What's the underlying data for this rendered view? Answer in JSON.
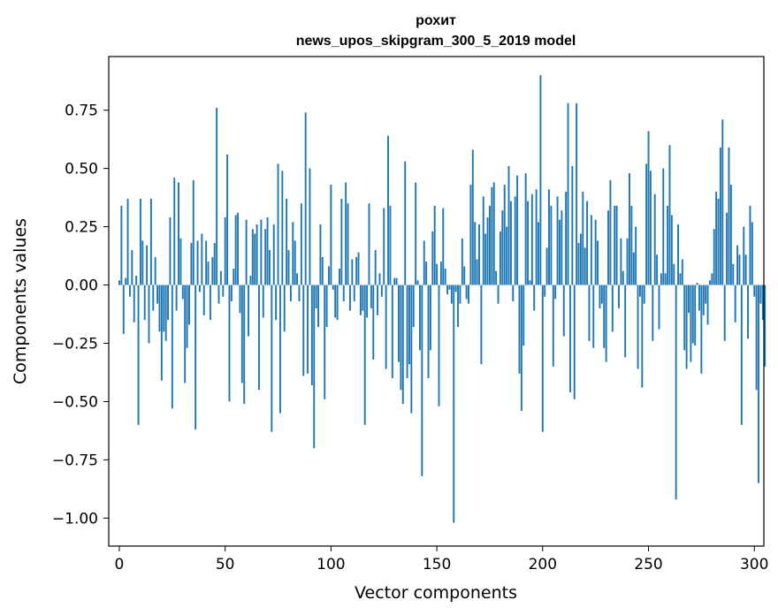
{
  "chart_data": {
    "type": "bar",
    "title_line1": "рохит",
    "title_line2": "news_upos_skipgram_300_5_2019 model",
    "xlabel": "Vector components",
    "ylabel": "Components values",
    "xlim": [
      -5,
      304.5
    ],
    "ylim": [
      -1.12,
      0.98
    ],
    "x_ticks": [
      0,
      50,
      100,
      150,
      200,
      250,
      300
    ],
    "x_tick_labels": [
      "0",
      "50",
      "100",
      "150",
      "200",
      "250",
      "300"
    ],
    "y_ticks": [
      0.75,
      0.5,
      0.25,
      0.0,
      -0.25,
      -0.5,
      -0.75,
      -1.0
    ],
    "y_tick_labels": [
      "0.75",
      "0.50",
      "0.25",
      "0.00",
      "−0.25",
      "−0.50",
      "−0.75",
      "−1.00"
    ],
    "bar_color": "#1f77b4",
    "values": [
      0.02,
      0.34,
      -0.21,
      0.03,
      0.37,
      -0.05,
      0.15,
      -0.16,
      0.04,
      -0.6,
      0.37,
      0.19,
      -0.15,
      0.17,
      -0.25,
      0.37,
      -0.11,
      0.12,
      -0.08,
      -0.2,
      -0.41,
      -0.2,
      -0.24,
      -0.15,
      0.29,
      -0.53,
      0.46,
      -0.11,
      0.44,
      0.2,
      -0.06,
      -0.42,
      -0.27,
      -0.17,
      0.18,
      0.45,
      -0.62,
      0.19,
      -0.03,
      0.22,
      -0.13,
      0.19,
      0.1,
      -0.15,
      0.12,
      0.18,
      0.76,
      -0.08,
      0.06,
      -0.05,
      0.29,
      0.56,
      -0.5,
      -0.07,
      0.07,
      0.3,
      0.31,
      -0.12,
      -0.42,
      -0.51,
      0.28,
      -0.22,
      0.04,
      0.24,
      0.22,
      0.26,
      -0.45,
      0.28,
      -0.14,
      0.24,
      0.29,
      0.15,
      -0.63,
      0.26,
      -0.15,
      0.52,
      -0.55,
      0.49,
      -0.2,
      0.37,
      0.15,
      -0.07,
      0.27,
      0.19,
      0.05,
      -0.07,
      0.35,
      -0.39,
      0.74,
      -0.38,
      0.5,
      -0.43,
      -0.7,
      -0.1,
      -0.18,
      0.26,
      0.12,
      -0.49,
      -0.18,
      0.08,
      0.43,
      -0.02,
      -0.14,
      -0.15,
      0.07,
      0.37,
      -0.07,
      0.44,
      0.35,
      -0.11,
      0.11,
      -0.07,
      0.12,
      0.14,
      -0.13,
      -0.11,
      -0.6,
      -0.14,
      0.35,
      -0.1,
      -0.32,
      0.15,
      -0.13,
      0.05,
      -0.05,
      0.33,
      -0.36,
      0.64,
      0.34,
      -0.4,
      0.03,
      0.03,
      -0.33,
      -0.45,
      -0.51,
      0.53,
      -0.4,
      -0.34,
      -0.55,
      -0.18,
      0.44,
      0.02,
      -0.28,
      -0.82,
      0.19,
      0.1,
      -0.4,
      -0.28,
      0.23,
      0.34,
      0.09,
      -0.52,
      0.1,
      0.33,
      0.07,
      -0.04,
      -0.02,
      -0.08,
      -1.02,
      -0.03,
      -0.18,
      -0.08,
      0.2,
      0.08,
      -0.06,
      -0.08,
      0.43,
      0.58,
      0.27,
      0.11,
      0.26,
      -0.34,
      0.38,
      0.22,
      0.29,
      0.34,
      0.42,
      0.44,
      0.06,
      -0.08,
      0.23,
      0.32,
      0.43,
      0.25,
      0.51,
      0.36,
      -0.07,
      0.38,
      0.47,
      -0.38,
      -0.54,
      -0.26,
      0.48,
      0.36,
      0.02,
      0.39,
      -0.11,
      0.41,
      0.27,
      0.9,
      -0.63,
      -0.05,
      0.16,
      0.41,
      0.34,
      -0.35,
      -0.06,
      0.38,
      0.28,
      0.32,
      -0.22,
      0.4,
      0.78,
      -0.46,
      0.51,
      -0.49,
      0.78,
      0.18,
      0.22,
      0.4,
      0.16,
      0.36,
      -0.24,
      0.3,
      -0.27,
      0.28,
      0.19,
      -0.1,
      -0.08,
      -0.27,
      -0.33,
      0.32,
      0.45,
      -0.2,
      0.34,
      0.34,
      -0.1,
      0.2,
      0.06,
      -0.31,
      0.2,
      0.48,
      0.34,
      0.14,
      0.25,
      -0.36,
      -0.05,
      -0.44,
      -0.08,
      0.52,
      0.66,
      0.49,
      -0.24,
      0.39,
      0.13,
      -0.19,
      0.05,
      0.5,
      0.05,
      0.34,
      0.6,
      0.3,
      0.09,
      -0.92,
      0.26,
      0.05,
      0.11,
      -0.28,
      -0.36,
      -0.12,
      -0.33,
      -0.25,
      -0.26,
      0.01,
      -0.11,
      -0.38,
      -0.13,
      -0.08,
      -0.17,
      0.02,
      0.05,
      0.24,
      0.4,
      0.37,
      0.59,
      0.71,
      -0.24,
      0.31,
      0.59,
      0.43,
      0.09,
      -0.16,
      0.17,
      0.13,
      -0.6,
      0.25,
      0.13,
      -0.23,
      0.34,
      0.27,
      -0.05,
      -0.45,
      -0.85,
      -0.08,
      -0.15,
      -0.35
    ]
  }
}
